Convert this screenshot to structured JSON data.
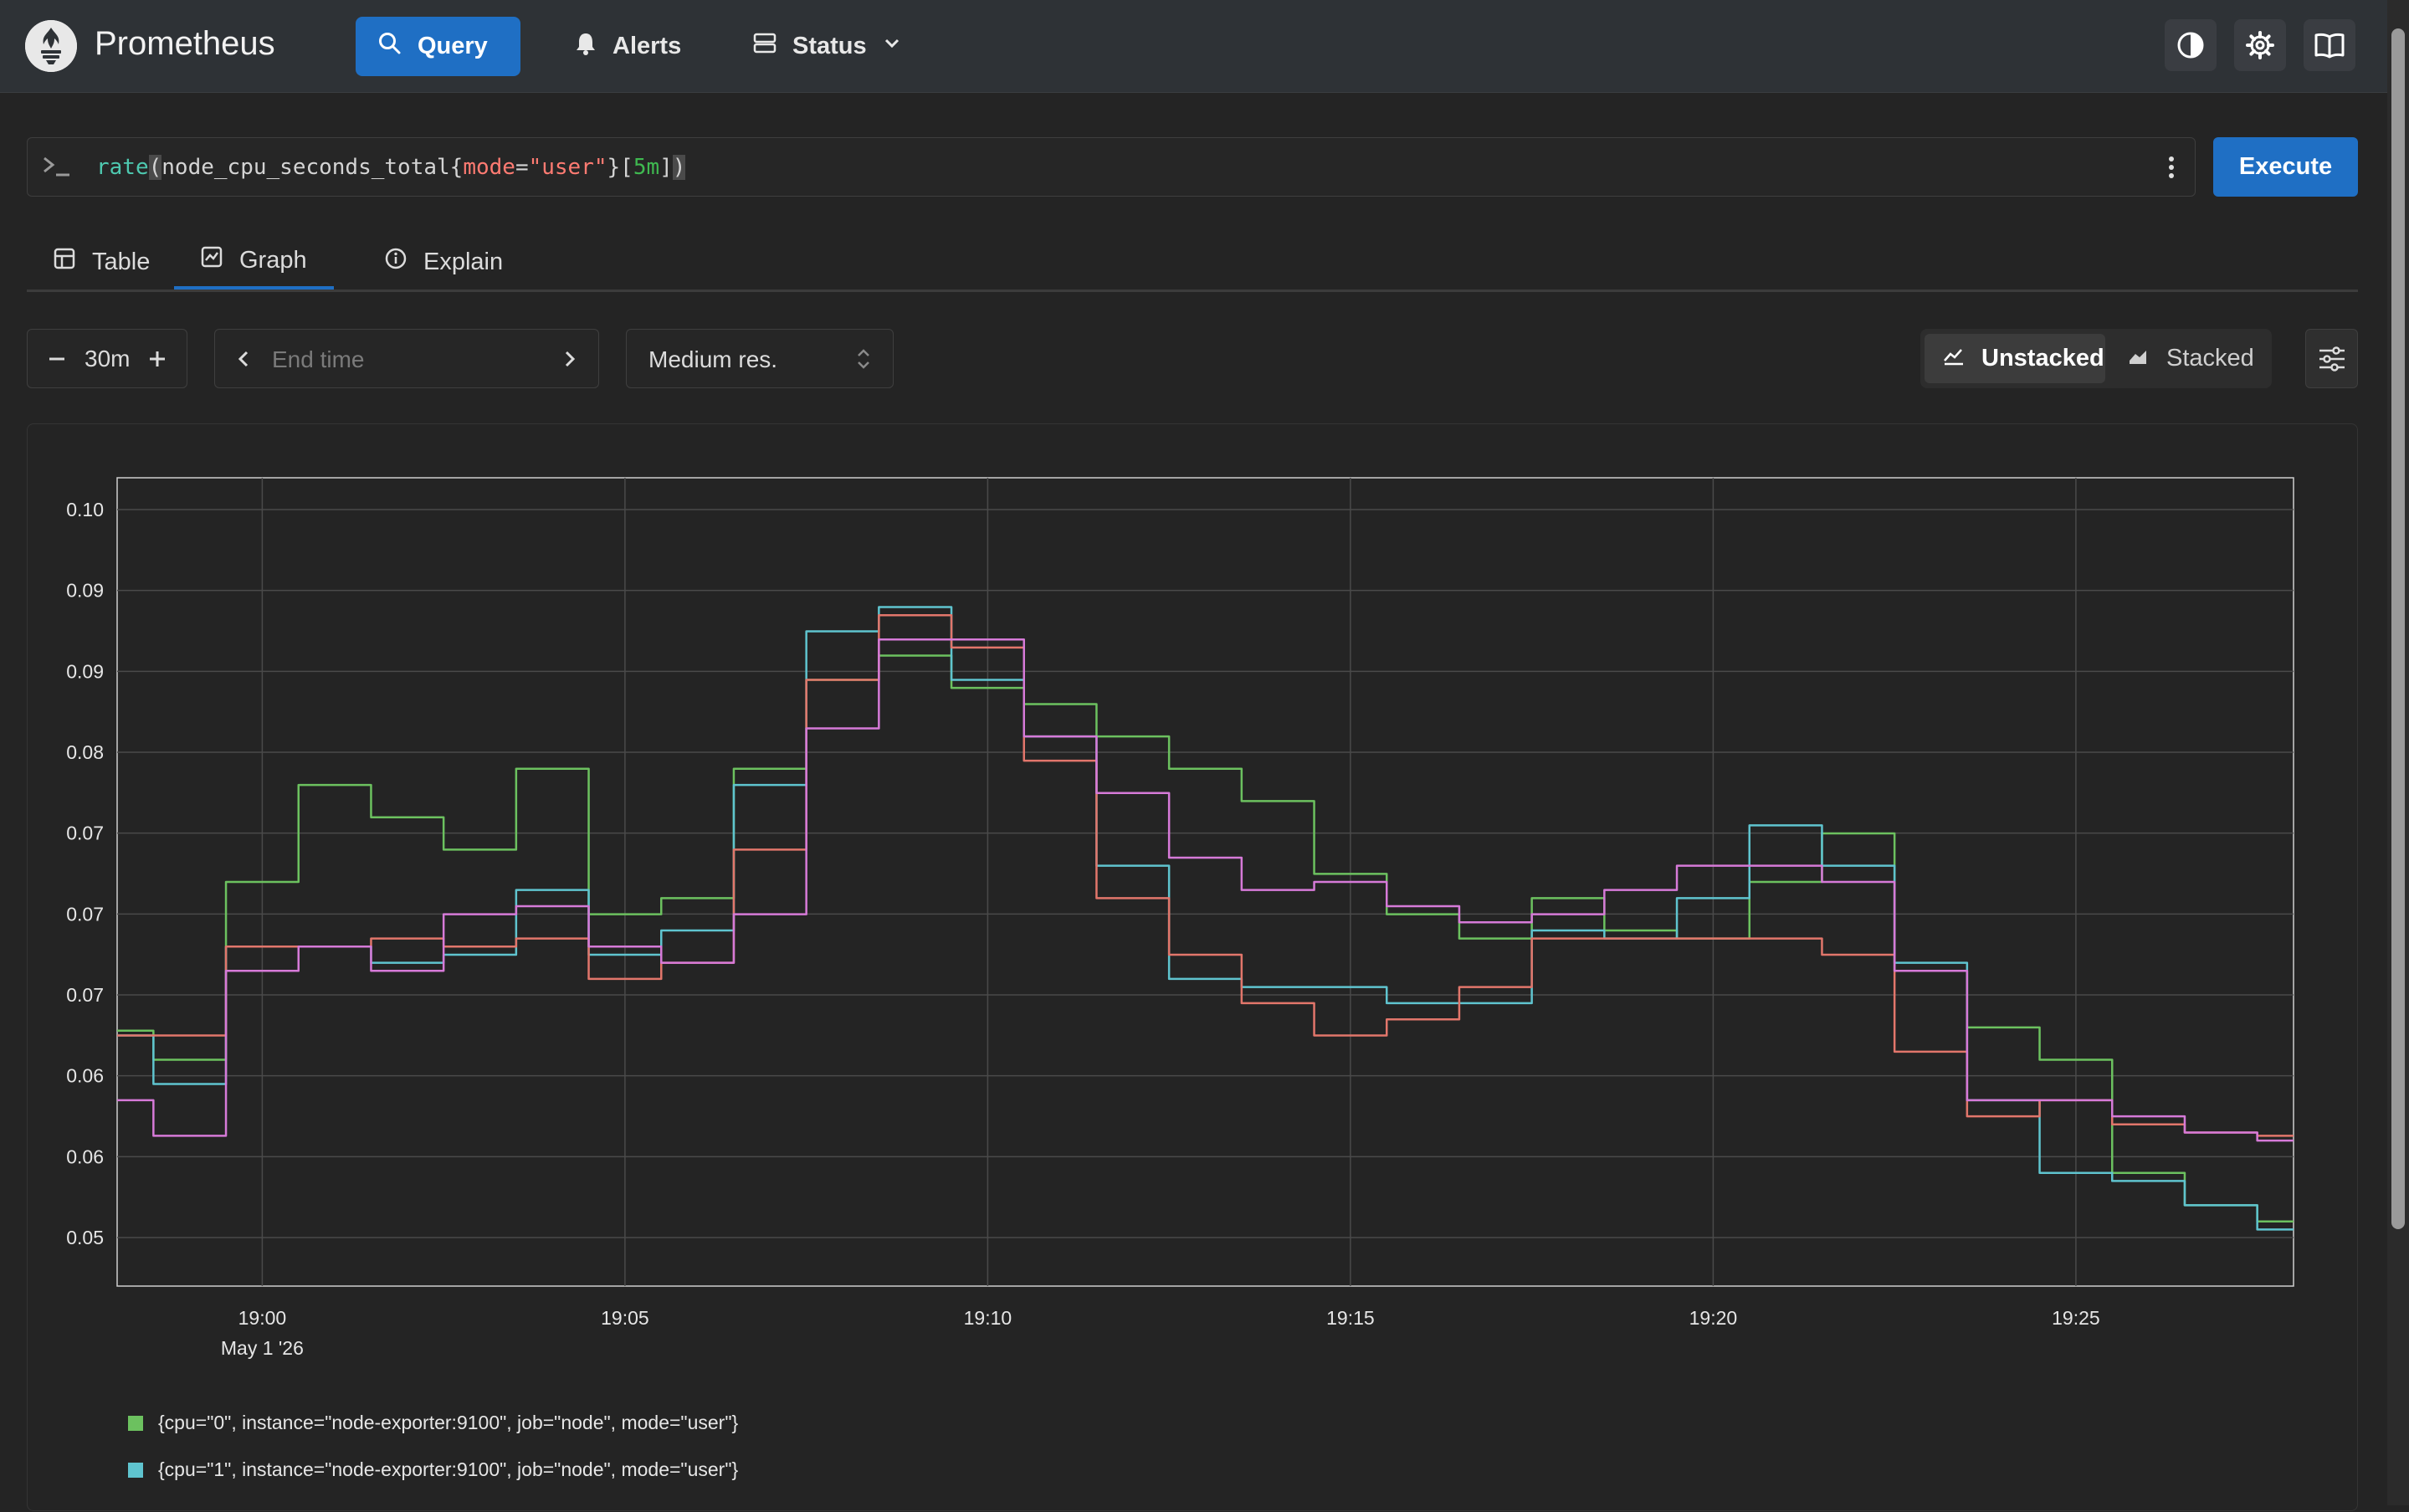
{
  "header": {
    "app_title": "Prometheus",
    "nav": [
      {
        "label": "Query",
        "icon": "search-icon",
        "active": true
      },
      {
        "label": "Alerts",
        "icon": "bell-icon",
        "active": false
      },
      {
        "label": "Status",
        "icon": "server-icon",
        "active": false
      }
    ],
    "icons": [
      "theme-toggle-icon",
      "gear-icon",
      "book-icon"
    ]
  },
  "query": {
    "fn": "rate",
    "metric": "node_cpu_seconds_total",
    "label_key": "mode",
    "label_value": "\"user\"",
    "range": "5m"
  },
  "execute_label": "Execute",
  "tabs": [
    {
      "label": "Table",
      "icon": "table-icon",
      "active": false
    },
    {
      "label": "Graph",
      "icon": "graph-icon",
      "active": true
    },
    {
      "label": "Explain",
      "icon": "info-icon",
      "active": false
    }
  ],
  "controls": {
    "range_value": "30m",
    "end_time_placeholder": "End time",
    "resolution": "Medium res.",
    "unstacked_label": "Unstacked",
    "stacked_label": "Stacked",
    "mode": "unstacked"
  },
  "colors": {
    "accent": "#1f6fc4",
    "series_green": "#6cc15f",
    "series_cyan": "#5fc4cf",
    "series_red": "#e2766b",
    "series_pink": "#d67ad8"
  },
  "chart_data": {
    "type": "line",
    "yticks": [
      "0.10",
      "0.09",
      "0.09",
      "0.08",
      "0.07",
      "0.07",
      "0.07",
      "0.06",
      "0.06",
      "0.05"
    ],
    "xticks": [
      "19:00",
      "19:05",
      "19:10",
      "19:15",
      "19:20",
      "19:25"
    ],
    "x_date_label": "May 1 '26",
    "x_range": [
      "18:58",
      "19:28"
    ],
    "ylim": [
      0.0505,
      0.1005
    ],
    "grid": true,
    "legend_position": "bottom-left",
    "x_times": [
      "18:58",
      "18:59",
      "19:00",
      "19:01",
      "19:02",
      "19:03",
      "19:04",
      "19:05",
      "19:06",
      "19:07",
      "19:08",
      "19:09",
      "19:10",
      "19:11",
      "19:12",
      "19:13",
      "19:14",
      "19:15",
      "19:16",
      "19:17",
      "19:18",
      "19:19",
      "19:20",
      "19:21",
      "19:22",
      "19:23",
      "19:24",
      "19:25",
      "19:26",
      "19:27",
      "19:28"
    ],
    "series": [
      {
        "name": "{cpu=\"0\", instance=\"node-exporter:9100\", job=\"node\", mode=\"user\"}",
        "color": "#6cc15f",
        "values": [
          0.0663,
          0.0645,
          0.0755,
          0.0815,
          0.0795,
          0.0775,
          0.0825,
          0.0735,
          0.0745,
          0.0825,
          0.088,
          0.0895,
          0.0875,
          0.0865,
          0.0845,
          0.0825,
          0.0805,
          0.076,
          0.0735,
          0.072,
          0.0745,
          0.0725,
          0.072,
          0.0755,
          0.0785,
          0.07,
          0.0665,
          0.0645,
          0.0575,
          0.0555,
          0.0545
        ]
      },
      {
        "name": "{cpu=\"1\", instance=\"node-exporter:9100\", job=\"node\", mode=\"user\"}",
        "color": "#5fc4cf",
        "values": [
          0.066,
          0.063,
          0.0715,
          0.0715,
          0.0705,
          0.071,
          0.075,
          0.071,
          0.0725,
          0.0815,
          0.091,
          0.0925,
          0.088,
          0.0845,
          0.0765,
          0.0695,
          0.069,
          0.069,
          0.068,
          0.068,
          0.0725,
          0.072,
          0.0745,
          0.079,
          0.0765,
          0.0705,
          0.062,
          0.0575,
          0.057,
          0.0555,
          0.054
        ]
      },
      {
        "name": "",
        "color": "#e2766b",
        "values": [
          0.066,
          0.066,
          0.0715,
          0.0715,
          0.072,
          0.0715,
          0.072,
          0.0695,
          0.0705,
          0.0775,
          0.088,
          0.092,
          0.09,
          0.083,
          0.0745,
          0.071,
          0.068,
          0.066,
          0.067,
          0.069,
          0.072,
          0.072,
          0.072,
          0.072,
          0.071,
          0.065,
          0.061,
          0.062,
          0.0605,
          0.06,
          0.0598
        ]
      },
      {
        "name": "",
        "color": "#d67ad8",
        "values": [
          0.062,
          0.0598,
          0.07,
          0.0715,
          0.07,
          0.0735,
          0.074,
          0.0715,
          0.0705,
          0.0735,
          0.085,
          0.0905,
          0.0905,
          0.0845,
          0.081,
          0.077,
          0.075,
          0.0755,
          0.074,
          0.073,
          0.0735,
          0.075,
          0.0765,
          0.0765,
          0.0755,
          0.07,
          0.062,
          0.062,
          0.061,
          0.06,
          0.0595
        ]
      }
    ]
  }
}
